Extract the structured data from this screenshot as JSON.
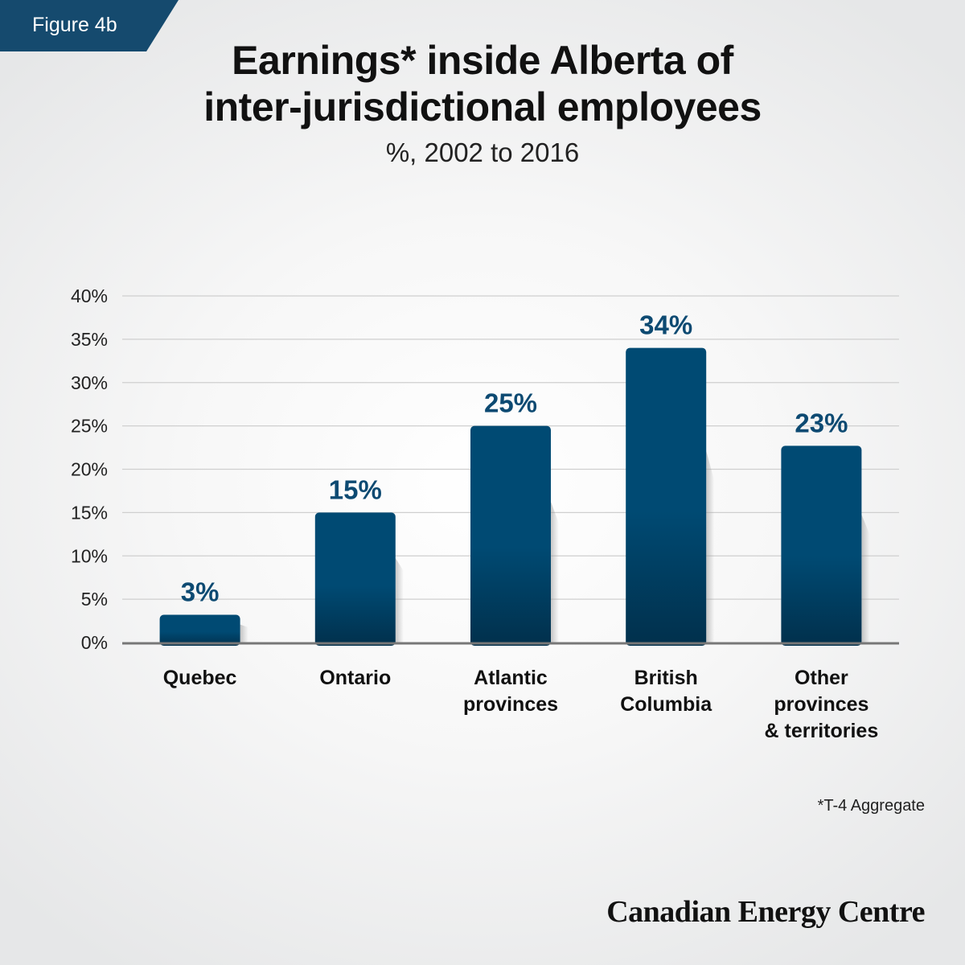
{
  "badge": {
    "label": "Figure 4b"
  },
  "title_lines": [
    "Earnings* inside Alberta of",
    "inter-jurisdictional employees"
  ],
  "subtitle": "%, 2002 to 2016",
  "footnote": "*T-4 Aggregate",
  "brand": "Canadian Energy Centre",
  "colors": {
    "bar": "#004a73",
    "bar_dark": "#003a5a",
    "value_label": "#0d4a72",
    "badge": "#154a6e",
    "grid": "#cfcfcf",
    "axis": "#777777"
  },
  "chart_data": {
    "type": "bar",
    "categories": [
      [
        "Quebec"
      ],
      [
        "Ontario"
      ],
      [
        "Atlantic",
        "provinces"
      ],
      [
        "British",
        "Columbia"
      ],
      [
        "Other",
        "provinces",
        "& territories"
      ]
    ],
    "values": [
      3.2,
      15,
      25,
      34,
      22.7
    ],
    "value_labels": [
      "3%",
      "15%",
      "25%",
      "34%",
      "23%"
    ],
    "yticks": [
      0,
      5,
      10,
      15,
      20,
      25,
      30,
      35,
      40
    ],
    "ytick_labels": [
      "0%",
      "5%",
      "10%",
      "15%",
      "20%",
      "25%",
      "30%",
      "35%",
      "40%"
    ],
    "ylim": [
      0,
      40
    ],
    "grid": true,
    "legend": false
  }
}
